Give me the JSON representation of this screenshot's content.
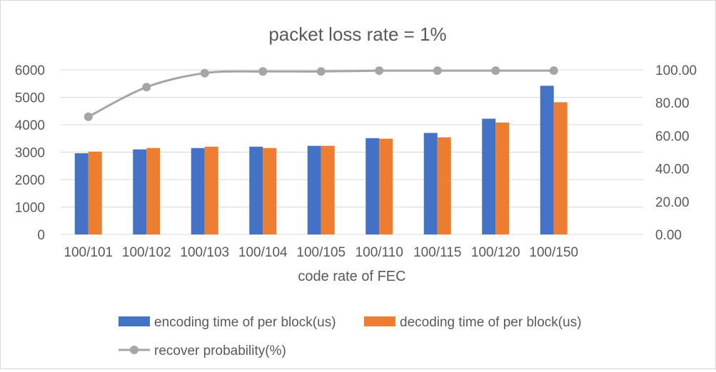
{
  "chart_data": {
    "type": "bar",
    "title": "packet loss rate = 1%",
    "xlabel": "code rate of FEC",
    "categories": [
      "100/101",
      "100/102",
      "100/103",
      "100/104",
      "100/105",
      "100/110",
      "100/115",
      "100/120",
      "100/150"
    ],
    "y_left": {
      "range": [
        0,
        6000
      ],
      "ticks": [
        "0",
        "1000",
        "2000",
        "3000",
        "4000",
        "5000",
        "6000"
      ]
    },
    "y_right": {
      "range": [
        0,
        100
      ],
      "ticks": [
        "0.00",
        "20.00",
        "40.00",
        "60.00",
        "80.00",
        "100.00"
      ]
    },
    "series": [
      {
        "name": "encoding time of per block(us)",
        "type": "bar",
        "axis": "left",
        "color": "#4472C4",
        "values": [
          2960,
          3100,
          3150,
          3200,
          3230,
          3510,
          3700,
          4220,
          5420
        ]
      },
      {
        "name": "decoding time of per block(us)",
        "type": "bar",
        "axis": "left",
        "color": "#ED7D31",
        "values": [
          3020,
          3150,
          3200,
          3150,
          3230,
          3490,
          3540,
          4080,
          4820
        ]
      },
      {
        "name": "recover probability(%)",
        "type": "line",
        "axis": "right",
        "color": "#A5A5A5",
        "values": [
          71.5,
          89.5,
          98.0,
          99.0,
          99.0,
          99.5,
          99.5,
          99.5,
          99.5
        ]
      }
    ],
    "legend_placement": "bottom",
    "gridlines": true
  }
}
